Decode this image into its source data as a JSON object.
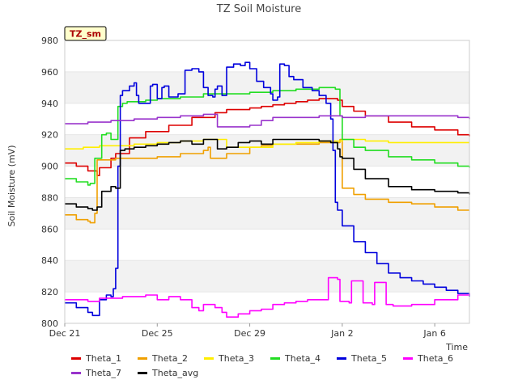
{
  "chart_data": {
    "type": "line",
    "title": "TZ Soil Moisture",
    "xlabel": "Time",
    "ylabel": "Soil Moisture (mV)",
    "badge": "TZ_sm",
    "ylim": [
      800,
      980
    ],
    "xlim": [
      0,
      17.5
    ],
    "y_ticks": [
      800,
      820,
      840,
      860,
      880,
      900,
      920,
      940,
      960,
      980
    ],
    "x_ticks": [
      {
        "x": 0,
        "label": "Dec 21"
      },
      {
        "x": 4,
        "label": "Dec 25"
      },
      {
        "x": 8,
        "label": "Dec 29"
      },
      {
        "x": 12,
        "label": "Jan 2"
      },
      {
        "x": 16,
        "label": "Jan 6"
      }
    ],
    "series": [
      {
        "name": "Theta_1",
        "color": "#dd0000",
        "x": [
          0.0,
          0.5,
          1.0,
          1.4,
          1.5,
          2.0,
          2.2,
          2.3,
          2.8,
          3.5,
          4.5,
          5.5,
          6.5,
          7.0,
          7.5,
          8.0,
          8.5,
          9.0,
          9.5,
          10.0,
          10.5,
          11.0,
          11.5,
          11.8,
          12.0,
          12.5,
          13.0,
          14.0,
          15.0,
          16.0,
          17.0,
          17.5
        ],
        "values": [
          902,
          900,
          897,
          894,
          899,
          905,
          908,
          908,
          918,
          922,
          926,
          931,
          934,
          936,
          936,
          937,
          938,
          939,
          940,
          941,
          942,
          943,
          943,
          942,
          938,
          935,
          932,
          928,
          925,
          923,
          920,
          919
        ]
      },
      {
        "name": "Theta_2",
        "color": "#f0a000",
        "x": [
          0.0,
          0.5,
          1.0,
          1.1,
          1.2,
          1.3,
          1.4,
          2.0,
          2.2,
          3.0,
          4.0,
          5.0,
          6.0,
          6.2,
          6.3,
          7.0,
          8.0,
          8.5,
          9.0,
          10.0,
          11.0,
          11.9,
          12.0,
          12.5,
          13.0,
          14.0,
          15.0,
          16.0,
          17.0,
          17.5
        ],
        "values": [
          869,
          866,
          865,
          864,
          864,
          870,
          904,
          904,
          905,
          905,
          906,
          908,
          910,
          912,
          905,
          908,
          912,
          913,
          914,
          914,
          915,
          917,
          886,
          882,
          879,
          877,
          876,
          874,
          872,
          872
        ]
      },
      {
        "name": "Theta_3",
        "color": "#ffee00",
        "x": [
          0.0,
          0.8,
          1.5,
          2.0,
          3.0,
          4.0,
          5.0,
          6.0,
          6.5,
          7.0,
          8.0,
          9.0,
          10.0,
          11.0,
          11.5,
          12.0,
          13.0,
          14.0,
          15.0,
          16.0,
          17.5
        ],
        "values": [
          911,
          912,
          913,
          913,
          914,
          915,
          916,
          917,
          917,
          912,
          912,
          914,
          915,
          916,
          916,
          917,
          916,
          915,
          915,
          915,
          915
        ]
      },
      {
        "name": "Theta_4",
        "color": "#22dd22",
        "x": [
          0.0,
          0.5,
          1.0,
          1.1,
          1.3,
          1.6,
          1.8,
          2.0,
          2.3,
          2.5,
          2.7,
          3.0,
          3.5,
          4.0,
          5.0,
          6.0,
          6.5,
          7.0,
          8.0,
          9.0,
          10.0,
          11.0,
          11.7,
          11.9,
          12.0,
          12.5,
          13.0,
          14.0,
          15.0,
          16.0,
          17.0,
          17.5
        ],
        "values": [
          892,
          890,
          888,
          889,
          905,
          920,
          921,
          917,
          938,
          940,
          941,
          941,
          942,
          943,
          944,
          946,
          946,
          946,
          947,
          948,
          949,
          950,
          949,
          932,
          917,
          912,
          910,
          906,
          904,
          902,
          900,
          899
        ]
      },
      {
        "name": "Theta_5",
        "color": "#0000dd",
        "x": [
          0.0,
          0.5,
          1.0,
          1.2,
          1.5,
          1.8,
          2.0,
          2.1,
          2.2,
          2.3,
          2.4,
          2.5,
          2.8,
          3.0,
          3.1,
          3.2,
          3.5,
          3.7,
          3.8,
          4.0,
          4.2,
          4.3,
          4.5,
          4.7,
          4.9,
          5.2,
          5.5,
          5.8,
          6.0,
          6.2,
          6.4,
          6.5,
          6.6,
          6.8,
          7.0,
          7.3,
          7.6,
          7.8,
          8.0,
          8.3,
          8.6,
          8.9,
          9.0,
          9.2,
          9.3,
          9.5,
          9.7,
          9.9,
          10.3,
          10.7,
          11.0,
          11.3,
          11.5,
          11.6,
          11.7,
          11.8,
          12.0,
          12.5,
          13.0,
          13.5,
          14.0,
          14.5,
          15.0,
          15.5,
          16.0,
          16.5,
          17.0,
          17.5
        ],
        "values": [
          813,
          810,
          807,
          805,
          815,
          818,
          817,
          822,
          835,
          900,
          945,
          948,
          951,
          953,
          945,
          940,
          940,
          951,
          952,
          943,
          950,
          951,
          944,
          944,
          946,
          961,
          962,
          960,
          950,
          945,
          944,
          949,
          951,
          945,
          963,
          965,
          964,
          966,
          962,
          954,
          950,
          946,
          942,
          944,
          965,
          964,
          957,
          955,
          950,
          948,
          945,
          940,
          930,
          910,
          877,
          872,
          862,
          852,
          845,
          838,
          832,
          829,
          827,
          825,
          823,
          821,
          819,
          817
        ]
      },
      {
        "name": "Theta_6",
        "color": "#ff00ff",
        "x": [
          0.0,
          0.5,
          1.0,
          1.5,
          2.0,
          2.5,
          3.0,
          3.5,
          4.0,
          4.5,
          5.0,
          5.5,
          5.8,
          6.0,
          6.2,
          6.5,
          6.8,
          7.0,
          7.5,
          8.0,
          8.5,
          9.0,
          9.5,
          10.0,
          10.5,
          11.0,
          11.3,
          11.4,
          11.8,
          11.9,
          12.3,
          12.4,
          12.8,
          12.9,
          13.3,
          13.4,
          13.8,
          13.9,
          14.2,
          14.3,
          15.0,
          16.0,
          17.0,
          17.5
        ],
        "values": [
          815,
          815,
          814,
          816,
          816,
          817,
          817,
          818,
          815,
          817,
          815,
          810,
          808,
          812,
          812,
          810,
          807,
          804,
          806,
          808,
          809,
          812,
          813,
          814,
          815,
          815,
          815,
          829,
          828,
          814,
          813,
          827,
          827,
          813,
          812,
          826,
          826,
          812,
          811,
          811,
          812,
          815,
          818,
          819
        ]
      },
      {
        "name": "Theta_7",
        "color": "#9933cc",
        "x": [
          0.0,
          1.0,
          2.0,
          3.0,
          4.0,
          5.0,
          6.0,
          6.4,
          6.6,
          7.0,
          8.0,
          8.5,
          9.0,
          10.0,
          11.0,
          12.0,
          13.0,
          14.0,
          15.0,
          16.0,
          17.0,
          17.5
        ],
        "values": [
          927,
          928,
          929,
          930,
          931,
          932,
          933,
          933,
          925,
          925,
          926,
          929,
          931,
          931,
          932,
          931,
          932,
          932,
          932,
          932,
          931,
          930
        ]
      },
      {
        "name": "Theta_avg",
        "color": "#000000",
        "x": [
          0.0,
          0.5,
          1.0,
          1.2,
          1.4,
          1.6,
          2.0,
          2.2,
          2.4,
          2.6,
          2.8,
          3.0,
          3.5,
          4.0,
          4.5,
          5.0,
          5.5,
          6.0,
          6.4,
          6.6,
          7.0,
          7.5,
          8.0,
          8.5,
          9.0,
          10.0,
          11.0,
          11.5,
          11.8,
          11.9,
          12.0,
          12.5,
          13.0,
          14.0,
          15.0,
          16.0,
          17.0,
          17.5
        ],
        "values": [
          876,
          874,
          873,
          872,
          874,
          884,
          887,
          886,
          910,
          911,
          911,
          912,
          913,
          914,
          915,
          916,
          914,
          917,
          917,
          911,
          912,
          915,
          916,
          914,
          917,
          917,
          916,
          915,
          911,
          906,
          905,
          898,
          892,
          887,
          885,
          884,
          883,
          882
        ]
      }
    ]
  }
}
